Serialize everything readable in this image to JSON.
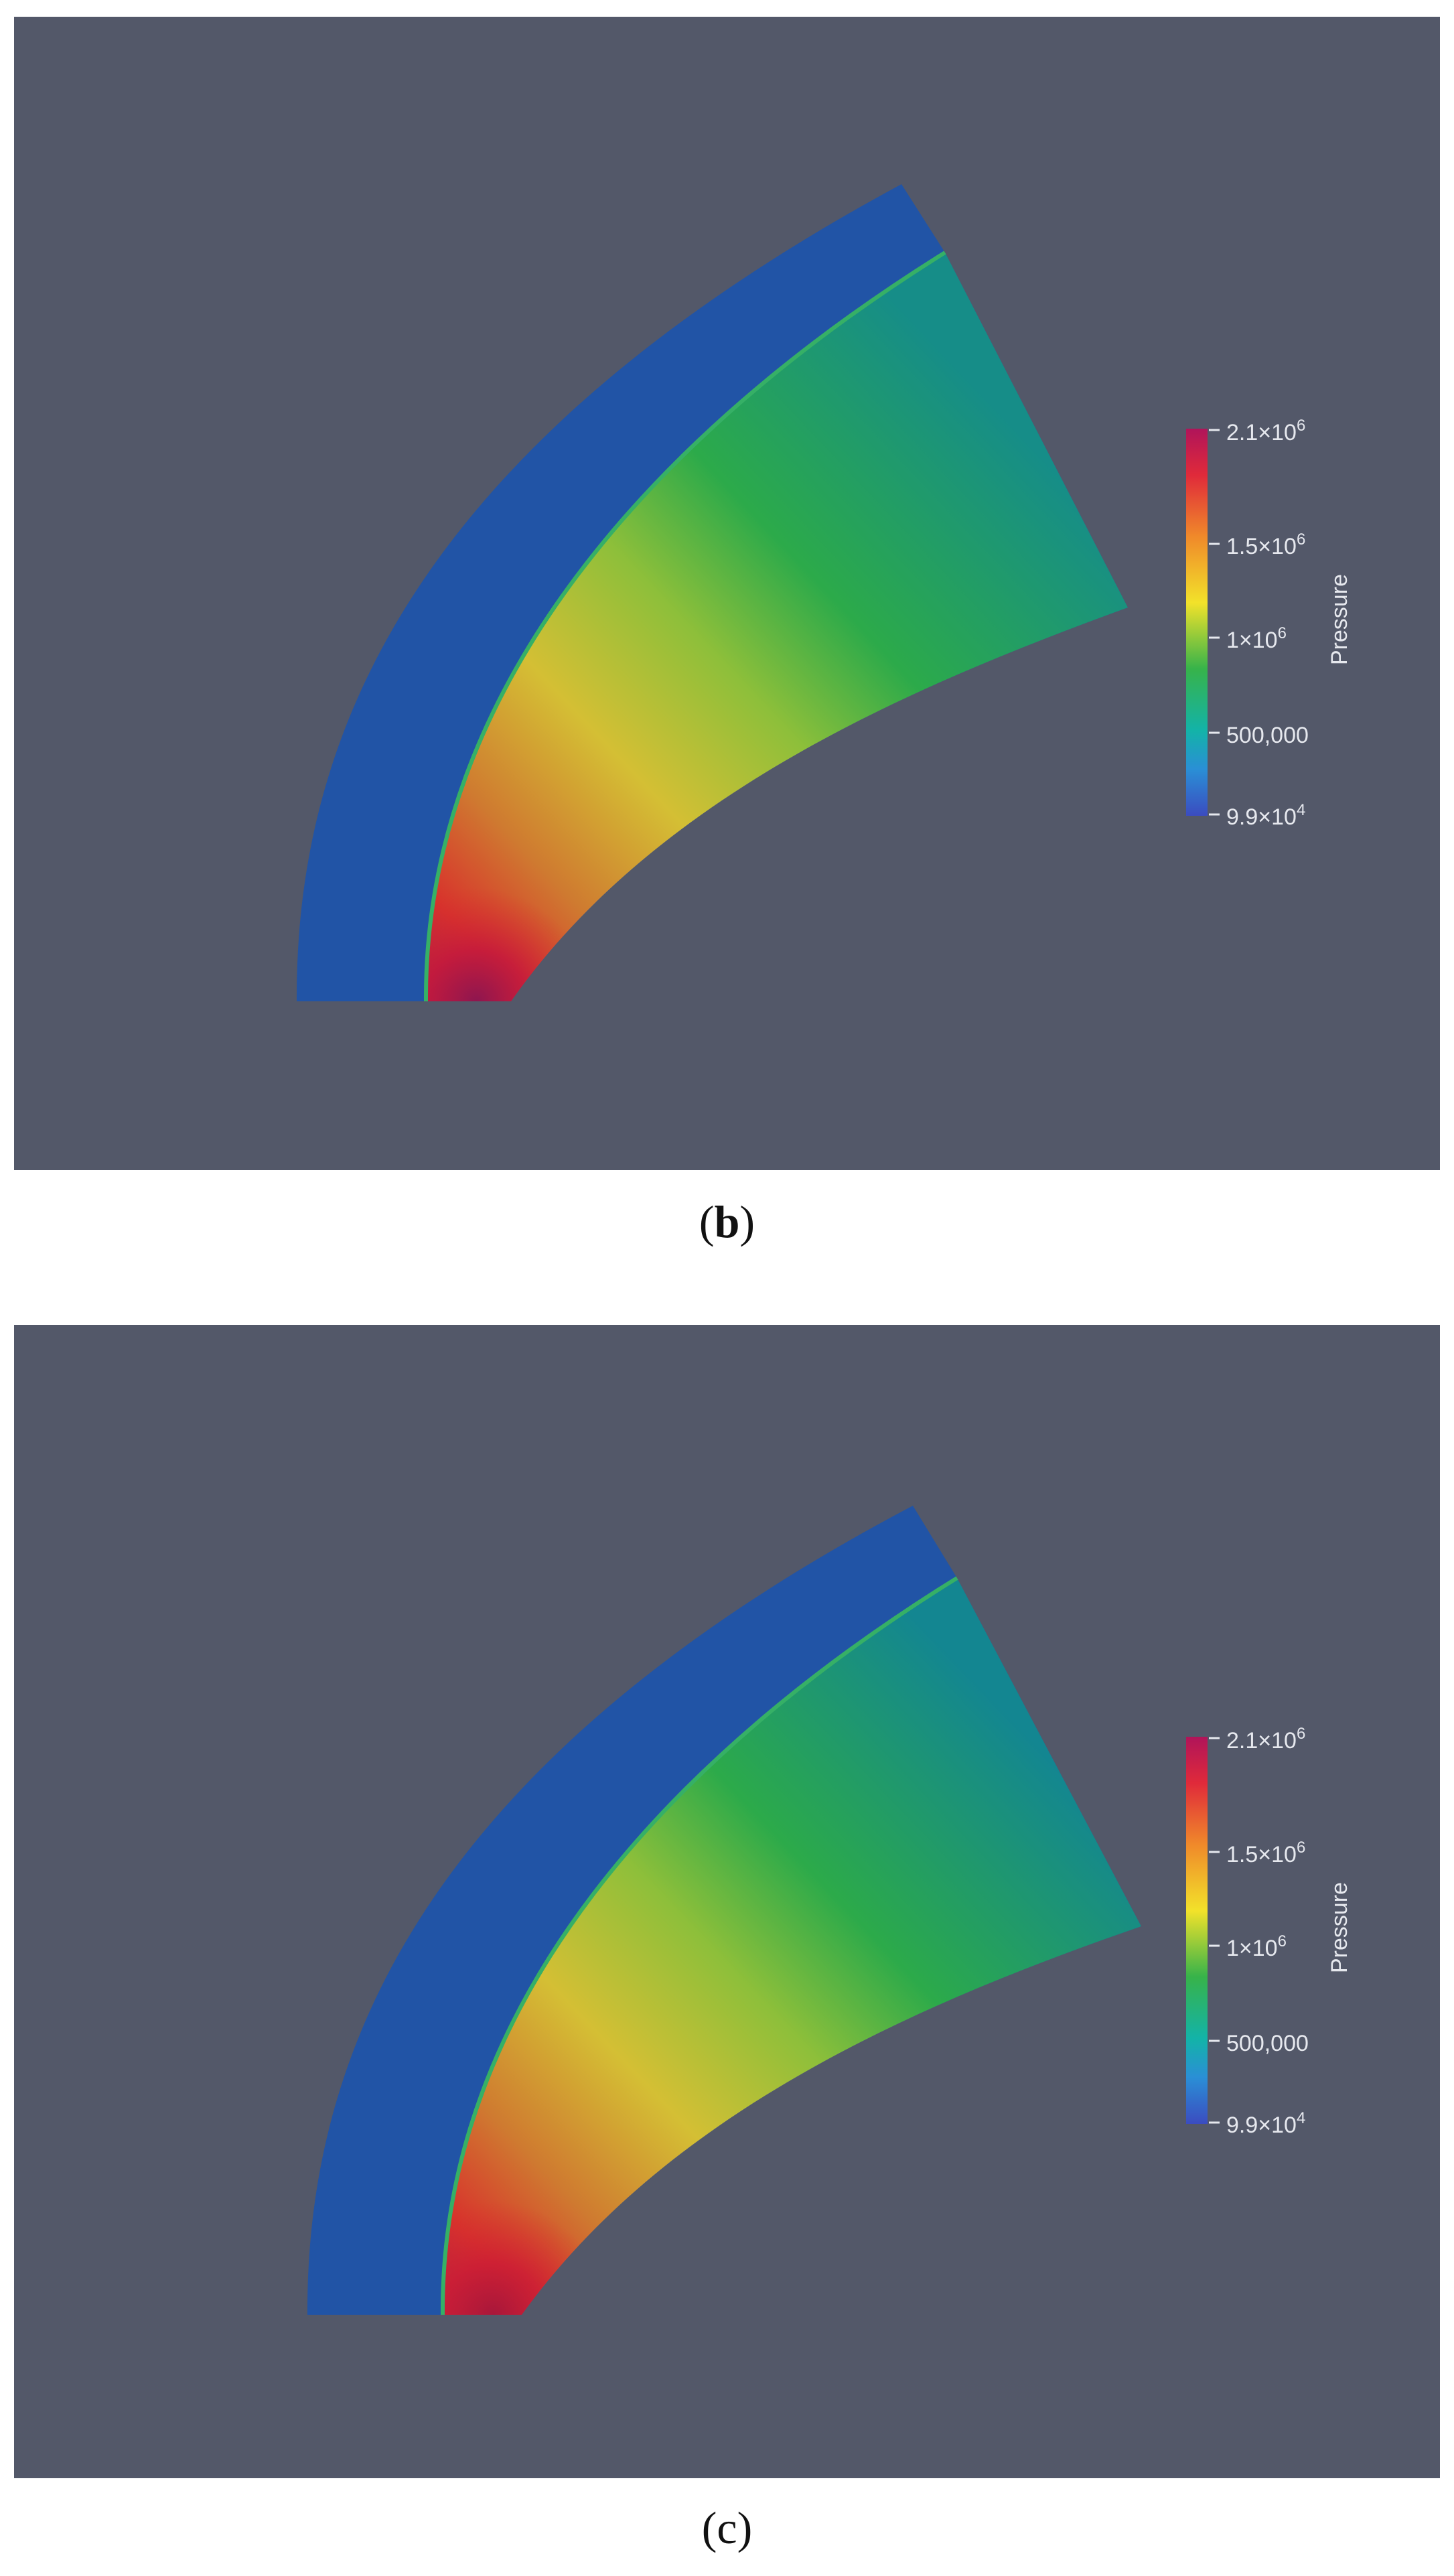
{
  "panels": [
    {
      "id": "b",
      "caption": {
        "open": "(",
        "letter": "b",
        "close": ")"
      },
      "colorbar": {
        "title": "Pressure",
        "ticks": [
          {
            "label": "2.1×10",
            "sup": "6"
          },
          {
            "label": "1.5×10",
            "sup": "6"
          },
          {
            "label": "1×10",
            "sup": "6"
          },
          {
            "label": "500,000",
            "sup": ""
          },
          {
            "label": "9.9×10",
            "sup": "4"
          }
        ]
      }
    },
    {
      "id": "c",
      "caption": {
        "open": "(",
        "letter": "c",
        "close": ")"
      },
      "colorbar": {
        "title": "Pressure",
        "ticks": [
          {
            "label": "2.1×10",
            "sup": "6"
          },
          {
            "label": "1.5×10",
            "sup": "6"
          },
          {
            "label": "1×10",
            "sup": "6"
          },
          {
            "label": "500,000",
            "sup": ""
          },
          {
            "label": "9.9×10",
            "sup": "4"
          }
        ]
      }
    }
  ],
  "colors": {
    "background": "#535869",
    "freestream": "#2154a6",
    "stagnation": "#a3174e",
    "hot": "#d8322c",
    "warm": "#d4bf34",
    "green": "#2caa4a",
    "teal": "#168d88"
  }
}
